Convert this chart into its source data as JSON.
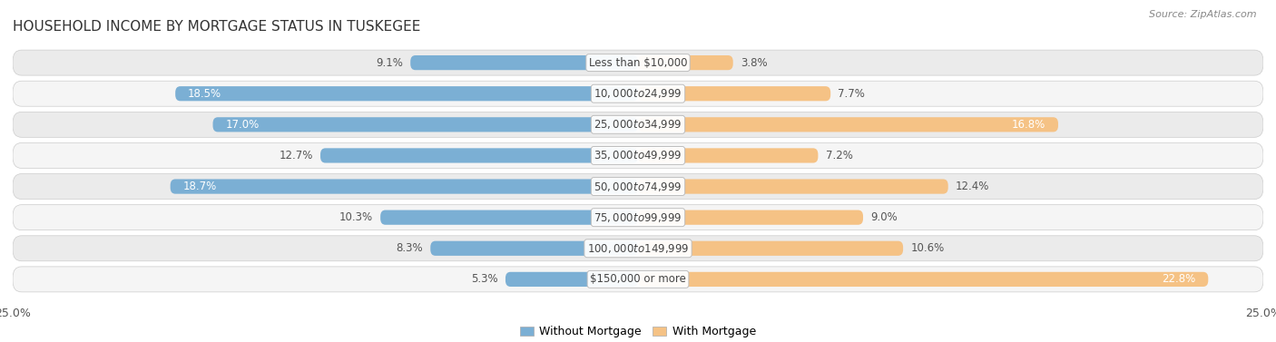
{
  "title": "HOUSEHOLD INCOME BY MORTGAGE STATUS IN TUSKEGEE",
  "source": "Source: ZipAtlas.com",
  "categories": [
    "Less than $10,000",
    "$10,000 to $24,999",
    "$25,000 to $34,999",
    "$35,000 to $49,999",
    "$50,000 to $74,999",
    "$75,000 to $99,999",
    "$100,000 to $149,999",
    "$150,000 or more"
  ],
  "without_mortgage": [
    9.1,
    18.5,
    17.0,
    12.7,
    18.7,
    10.3,
    8.3,
    5.3
  ],
  "with_mortgage": [
    3.8,
    7.7,
    16.8,
    7.2,
    12.4,
    9.0,
    10.6,
    22.8
  ],
  "blue_color": "#7BAFD4",
  "orange_color": "#F5C285",
  "row_colors": [
    "#EBEBEB",
    "#F5F5F5"
  ],
  "xlim": 25.0,
  "title_fontsize": 11,
  "label_fontsize": 8.5,
  "axis_label_fontsize": 9,
  "legend_fontsize": 9,
  "without_mortgage_white_threshold": 14.0,
  "with_mortgage_white_threshold": 14.0
}
